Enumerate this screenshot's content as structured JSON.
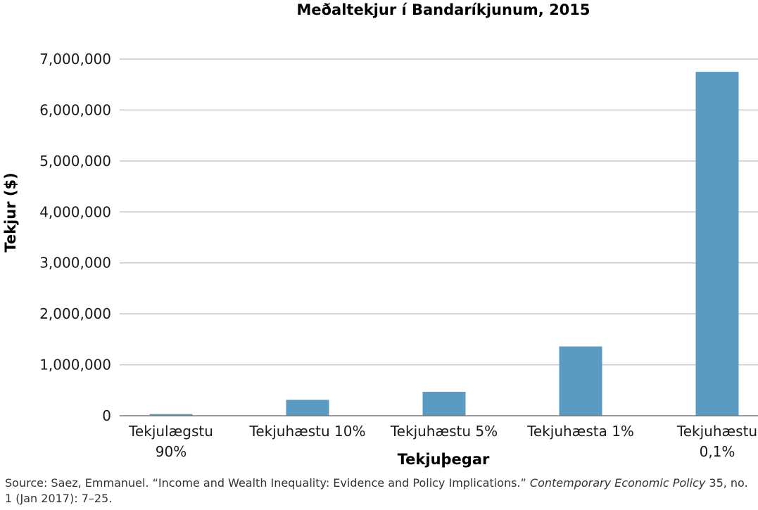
{
  "chart_data": {
    "type": "bar",
    "title": "Meðaltekjur í Bandaríkjunum, 2015",
    "xlabel": "Tekjuþegar",
    "ylabel": "Tekjur ($)",
    "categories": [
      [
        "Tekjulægstu",
        "90%"
      ],
      [
        "Tekjuhæstu 10%"
      ],
      [
        "Tekjuhæstu 5%"
      ],
      [
        "Tekjuhæsta 1%"
      ],
      [
        "Tekjuhæstu",
        "0,1%"
      ]
    ],
    "values": [
      33000,
      312000,
      470000,
      1360000,
      6750000
    ],
    "ylim": [
      0,
      7000000
    ],
    "yticks": [
      "0",
      "1,000,000",
      "2,000,000",
      "3,000,000",
      "4,000,000",
      "5,000,000",
      "6,000,000",
      "7,000,000"
    ],
    "grid": true,
    "bar_color": "#5b9bc1"
  },
  "source": {
    "prefix": "Source: Saez, Emmanuel. “Income and Wealth Inequality: Evidence and Policy Implications.” ",
    "journal": "Contemporary Economic Policy",
    "suffix": " 35, no. 1 (Jan 2017): 7–25."
  }
}
